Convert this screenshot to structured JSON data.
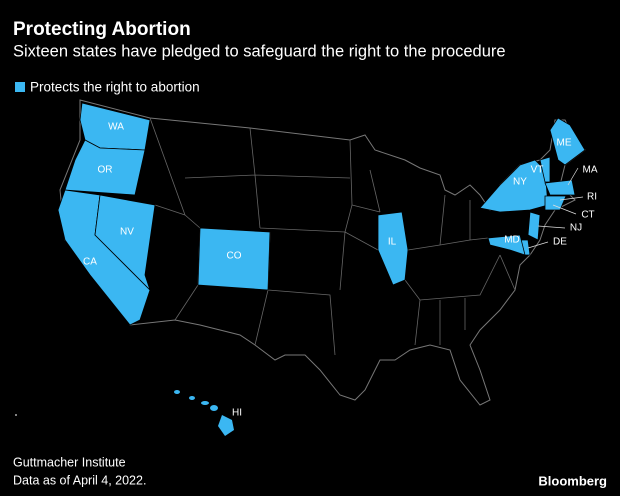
{
  "header": {
    "title": "Protecting Abortion",
    "subtitle": "Sixteen states have pledged to safeguard the right to the procedure"
  },
  "legend": {
    "label": "Protects the right to abortion",
    "color": "#3bb7f2"
  },
  "map": {
    "states": [
      {
        "label": "WA"
      },
      {
        "label": "OR"
      },
      {
        "label": "CA"
      },
      {
        "label": "NV"
      },
      {
        "label": "CO"
      },
      {
        "label": "IL"
      },
      {
        "label": "NY"
      },
      {
        "label": "VT"
      },
      {
        "label": "ME"
      },
      {
        "label": "MA"
      },
      {
        "label": "RI"
      },
      {
        "label": "CT"
      },
      {
        "label": "NJ"
      },
      {
        "label": "DE"
      },
      {
        "label": "MD"
      },
      {
        "label": "HI"
      }
    ]
  },
  "footer": {
    "source": "Guttmacher Institute",
    "note": "Data as of April 4, 2022.",
    "brand": "Bloomberg"
  }
}
